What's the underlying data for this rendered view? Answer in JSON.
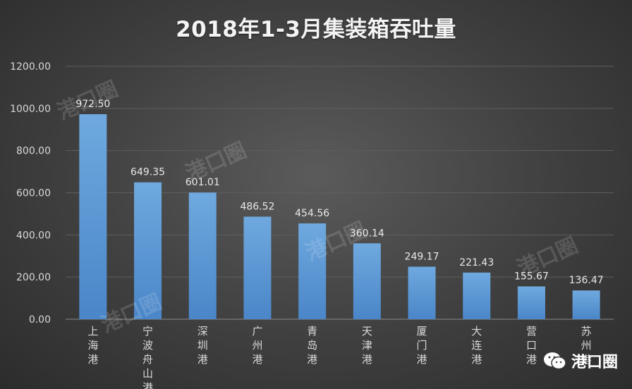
{
  "chart_data": {
    "type": "bar",
    "title": "2018年1-3月集装箱吞吐量",
    "categories": [
      "上海港",
      "宁波舟山港",
      "深圳港",
      "广州港",
      "青岛港",
      "天津港",
      "厦门港",
      "大连港",
      "营口港",
      "苏州港"
    ],
    "values": [
      972.5,
      649.35,
      601.01,
      486.52,
      454.56,
      360.14,
      249.17,
      221.43,
      155.67,
      136.47
    ],
    "data_labels": [
      "972.50",
      "649.35",
      "601.01",
      "486.52",
      "454.56",
      "360.14",
      "249.17",
      "221.43",
      "155.67",
      "136.47"
    ],
    "ylim": [
      0,
      1200
    ],
    "yticks": [
      "0.00",
      "200.00",
      "400.00",
      "600.00",
      "800.00",
      "1000.00",
      "1200.00"
    ],
    "grid": true,
    "legend": "none",
    "bar_color": "#5b9bd5",
    "xlabel": "",
    "ylabel": ""
  },
  "watermark": "港口圈",
  "brand": {
    "name": "港口圈",
    "icon": "wechat-icon"
  }
}
